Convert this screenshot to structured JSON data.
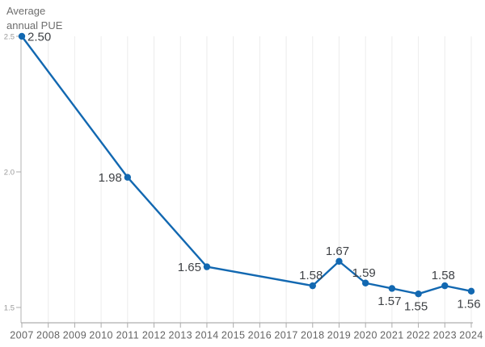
{
  "chart_data": {
    "type": "line",
    "title": "Average annual PUE",
    "xlabel": "",
    "ylabel": "Average annual PUE",
    "legend": "none",
    "grid": "vertical-only",
    "xlim": [
      2007,
      2024
    ],
    "ylim": [
      1.44,
      2.52
    ],
    "series": [
      {
        "name": "Average annual PUE",
        "points": [
          {
            "year": 2007,
            "value": 2.5,
            "label": "2.50",
            "label_pos": "right"
          },
          {
            "year": 2011,
            "value": 1.98,
            "label": "1.98",
            "label_pos": "left"
          },
          {
            "year": 2014,
            "value": 1.65,
            "label": "1.65",
            "label_pos": "left"
          },
          {
            "year": 2018,
            "value": 1.58,
            "label": "1.58",
            "label_pos": "above"
          },
          {
            "year": 2019,
            "value": 1.67,
            "label": "1.67",
            "label_pos": "above"
          },
          {
            "year": 2020,
            "value": 1.59,
            "label": "1.59",
            "label_pos": "above"
          },
          {
            "year": 2021,
            "value": 1.57,
            "label": "1.57",
            "label_pos": "below"
          },
          {
            "year": 2022,
            "value": 1.55,
            "label": "1.55",
            "label_pos": "below"
          },
          {
            "year": 2023,
            "value": 1.58,
            "label": "1.58",
            "label_pos": "above"
          },
          {
            "year": 2024,
            "value": 1.56,
            "label": "1.56",
            "label_pos": "below"
          }
        ]
      }
    ],
    "x_ticks": [
      "2007",
      "2008",
      "2009",
      "2010",
      "2011",
      "2012",
      "2013",
      "2014",
      "2015",
      "2016",
      "2017",
      "2018",
      "2019",
      "2020",
      "2021",
      "2022",
      "2023",
      "2024"
    ],
    "y_ticks": [
      {
        "value": 2.5,
        "label": "2.5"
      },
      {
        "value": 2.0,
        "label": "2.0"
      },
      {
        "value": 1.5,
        "label": "1.5"
      }
    ],
    "colors": {
      "line": "#1268b1",
      "point": "#1268b1",
      "data_label": "#3f4246",
      "axis_line": "#9b9b9b",
      "y_axis_line": "#b3b3b3",
      "tick": "#ababab",
      "x_tick_label": "#636363",
      "y_tick_label": "#9a9a9a",
      "grid_line": "#ececec",
      "title": "#6e6e6e",
      "background": "#ffffff"
    }
  }
}
